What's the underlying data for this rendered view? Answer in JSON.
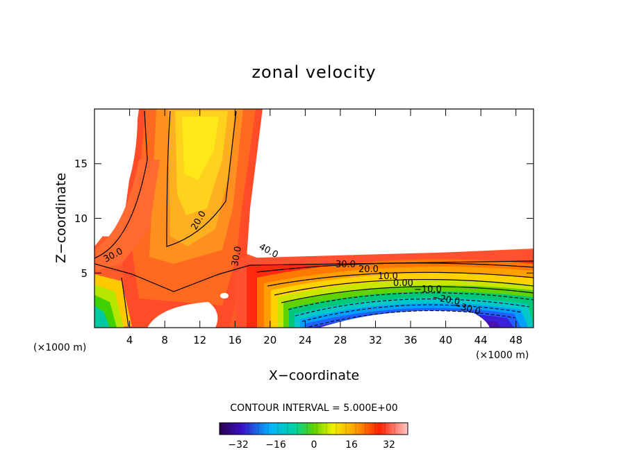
{
  "chart_data": {
    "type": "contour",
    "title": "zonal velocity",
    "xlabel": "X−coordinate",
    "ylabel": "Z−coordinate",
    "x_unit_left": "(×1000 m)",
    "x_unit_right": "(×1000 m)",
    "xlim": [
      0,
      50
    ],
    "ylim": [
      0,
      20
    ],
    "x_ticks": [
      "4",
      "8",
      "12",
      "16",
      "20",
      "24",
      "28",
      "32",
      "36",
      "40",
      "44",
      "48"
    ],
    "y_ticks": [
      "5",
      "10",
      "15"
    ],
    "contour_labels": [
      "30.0",
      "20.0",
      "30.0",
      "40.0",
      "30.0",
      "20.0",
      "10.0",
      "0.00",
      "−10.0",
      "−20.0",
      "−30.0"
    ],
    "contour_interval_text": "CONTOUR INTERVAL = 5.000E+00",
    "colorbar": {
      "range": [
        -40,
        40
      ],
      "ticks": [
        "−32",
        "−16",
        "0",
        "16",
        "32"
      ]
    }
  }
}
